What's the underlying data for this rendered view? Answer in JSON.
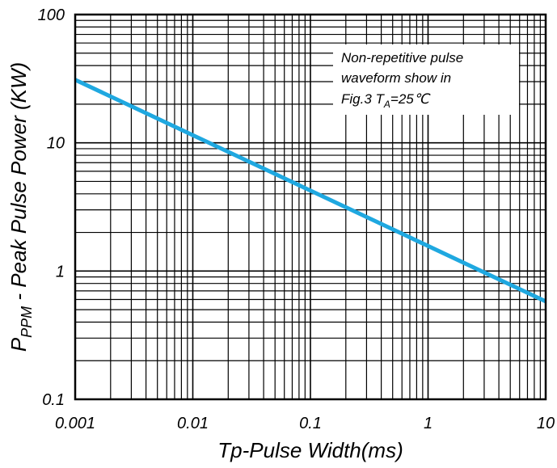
{
  "chart_data": {
    "type": "line",
    "xscale": "log",
    "yscale": "log",
    "xlim": [
      0.001,
      10
    ],
    "ylim": [
      0.1,
      100
    ],
    "grid": true,
    "xlabel": "Tp-Pulse Width(ms)",
    "ylabel": {
      "P": "P",
      "sub": "PPM",
      "rest": " - Peak Pulse Power  (KW)"
    },
    "x_ticks": [
      "0.001",
      "0.01",
      "0.1",
      "1",
      "10"
    ],
    "y_ticks": [
      "0.1",
      "1",
      "10",
      "100"
    ],
    "series": [
      {
        "color": "#1fa8e0",
        "x": [
          0.001,
          10
        ],
        "y": [
          31,
          0.58
        ]
      }
    ],
    "annotation": {
      "line1": "Non-repetitive pulse",
      "line2": "waveform show in",
      "line3_a": "Fig.3  T",
      "line3_sub": "A",
      "line3_b": "=25℃"
    }
  }
}
